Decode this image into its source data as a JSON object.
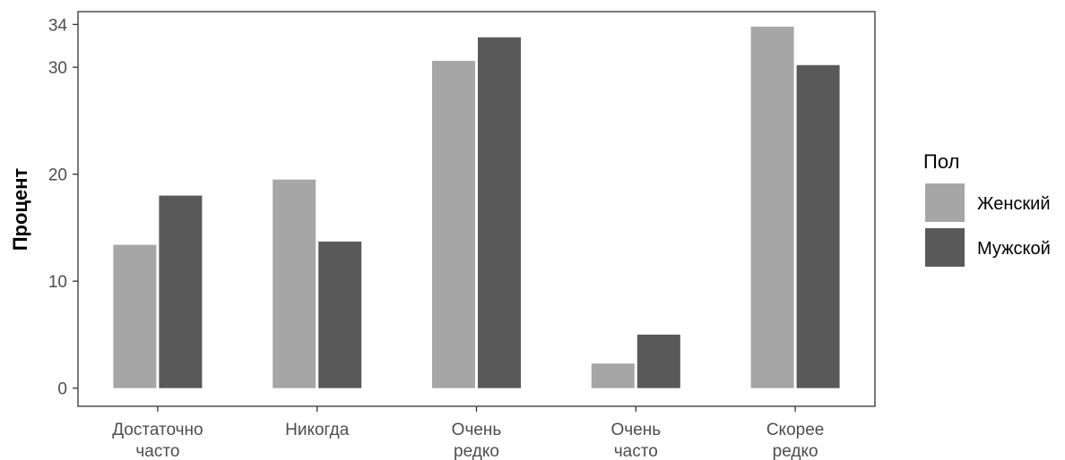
{
  "chart_data": {
    "type": "bar",
    "ylabel": "Процент",
    "xlabel": "",
    "categories": [
      [
        "Достаточно",
        "часто"
      ],
      [
        "Никогда"
      ],
      [
        "Очень",
        "редко"
      ],
      [
        "Очень",
        "часто"
      ],
      [
        "Скорее",
        "редко"
      ]
    ],
    "series": [
      {
        "name": "Женский",
        "color": "#a6a6a6",
        "values": [
          13.4,
          19.5,
          30.6,
          2.3,
          33.8
        ]
      },
      {
        "name": "Мужской",
        "color": "#595959",
        "values": [
          18.0,
          13.7,
          32.8,
          5.0,
          30.2
        ]
      }
    ],
    "yticks": [
      0,
      10,
      20,
      30,
      34
    ],
    "ylim": [
      -1.7,
      35.2
    ],
    "legend": {
      "title": "Пол",
      "position": "right"
    },
    "grid": false
  }
}
